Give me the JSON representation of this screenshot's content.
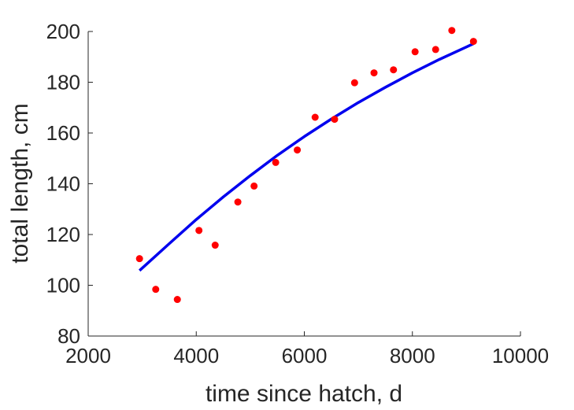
{
  "chart_data": {
    "type": "scatter",
    "title": "",
    "xlabel": "time since hatch, d",
    "ylabel": "total length, cm",
    "xlim": [
      2000,
      10000
    ],
    "ylim": [
      80,
      200
    ],
    "xticks": [
      2000,
      4000,
      6000,
      8000,
      10000
    ],
    "xtick_labels": [
      "2000",
      "4000",
      "6000",
      "8000",
      "10000"
    ],
    "yticks": [
      80,
      100,
      120,
      140,
      160,
      180,
      200
    ],
    "ytick_labels": [
      "80",
      "100",
      "120",
      "140",
      "160",
      "180",
      "200"
    ],
    "grid": false,
    "legend": "none",
    "series": [
      {
        "kind": "points",
        "color": "#ff0000",
        "x": [
          2950,
          3250,
          3650,
          4050,
          4350,
          4770,
          5070,
          5470,
          5870,
          6200,
          6560,
          6930,
          7290,
          7650,
          8050,
          8430,
          8730,
          9130
        ],
        "y": [
          110.5,
          98.4,
          94.4,
          121.6,
          115.8,
          132.8,
          139.1,
          148.4,
          153.3,
          166.2,
          165.4,
          179.8,
          183.7,
          184.9,
          192.0,
          192.9,
          200.4,
          196.1
        ]
      },
      {
        "kind": "fit-line",
        "color": "#0000ee",
        "x": [
          2950,
          3500,
          4000,
          4500,
          5000,
          5500,
          6000,
          6500,
          7000,
          7500,
          8000,
          8500,
          9000,
          9130
        ],
        "y": [
          105.8,
          116.4,
          125.9,
          134.8,
          143.2,
          151.2,
          158.6,
          165.5,
          172.0,
          178.0,
          183.7,
          189.0,
          193.9,
          195.2
        ]
      }
    ]
  }
}
